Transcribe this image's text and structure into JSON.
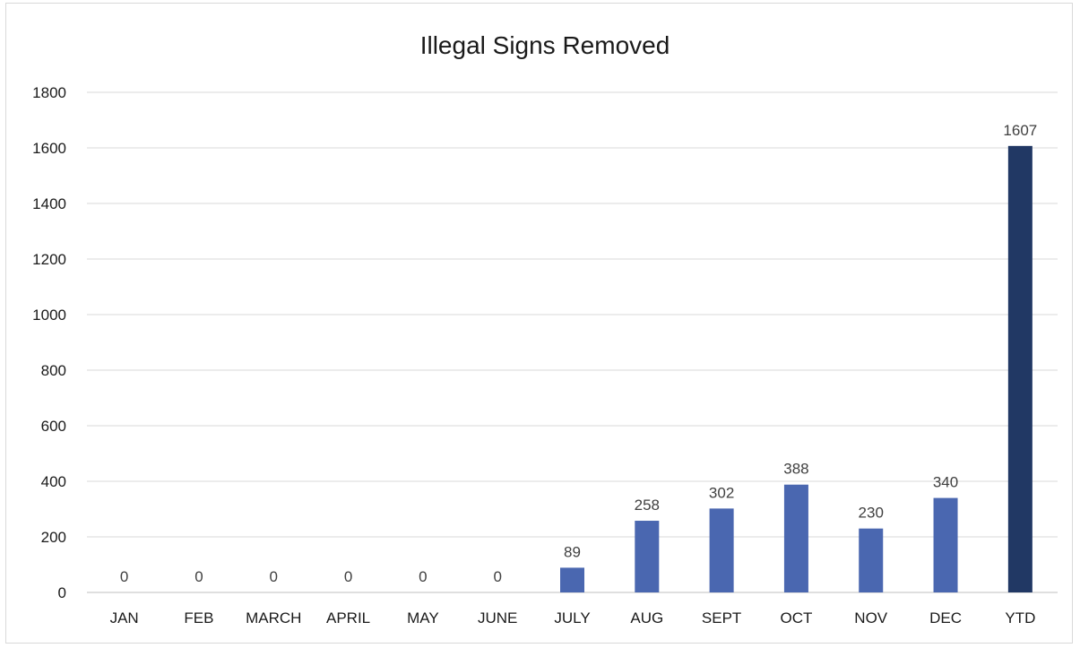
{
  "chart_data": {
    "type": "bar",
    "title": "Illegal Signs Removed",
    "xlabel": "",
    "ylabel": "",
    "categories": [
      "JAN",
      "FEB",
      "MARCH",
      "APRIL",
      "MAY",
      "JUNE",
      "JULY",
      "AUG",
      "SEPT",
      "OCT",
      "NOV",
      "DEC",
      "YTD"
    ],
    "values": [
      0,
      0,
      0,
      0,
      0,
      0,
      89,
      258,
      302,
      388,
      230,
      340,
      1607
    ],
    "data_labels": [
      "0",
      "0",
      "0",
      "0",
      "0",
      "0",
      "89",
      "258",
      "302",
      "388",
      "230",
      "340",
      "1607"
    ],
    "y_ticks": [
      "0",
      "200",
      "400",
      "600",
      "800",
      "1000",
      "1200",
      "1400",
      "1600",
      "1800"
    ],
    "ylim": [
      0,
      1800
    ],
    "grid": true,
    "legend": "none",
    "colors": {
      "bar": "#4a67b0",
      "highlight_bar": "#213864",
      "gridline": "#d9d9d9"
    },
    "highlight_category": "YTD"
  }
}
